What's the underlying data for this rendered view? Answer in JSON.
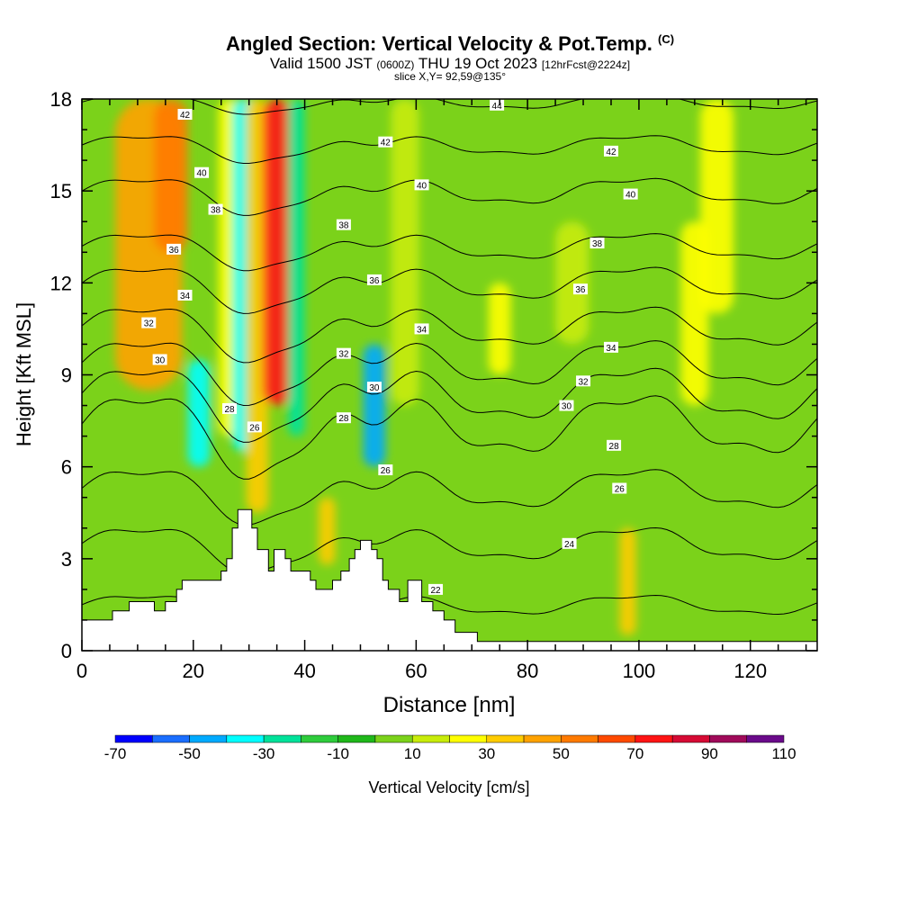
{
  "header": {
    "title_main": "Angled Section: Vertical Velocity & Pot.Temp.",
    "title_mark": "(C)",
    "valid_a": "Valid 1500 JST",
    "valid_b": "(0600Z)",
    "valid_c": "THU 19 Oct 2023",
    "valid_d": "[12hrFcst@2224z]",
    "slice": "slice X,Y= 92,59@135°"
  },
  "chart_data": {
    "type": "heatmap",
    "xlabel": "Distance [nm]",
    "ylabel": "Height [Kft MSL]",
    "xlim": [
      0,
      132
    ],
    "ylim": [
      0,
      18
    ],
    "x_ticks": [
      0,
      20,
      40,
      60,
      80,
      100,
      120
    ],
    "y_ticks": [
      0,
      3,
      6,
      9,
      12,
      15,
      18
    ],
    "colorbar": {
      "label": "Vertical Velocity [cm/s]",
      "tick_labels": [
        "-70",
        "-50",
        "-30",
        "-10",
        "10",
        "30",
        "50",
        "70",
        "90",
        "110"
      ],
      "levels": [
        -70,
        -60,
        -50,
        -40,
        -30,
        -20,
        -10,
        0,
        10,
        20,
        30,
        40,
        50,
        60,
        70,
        80,
        90,
        100,
        110
      ],
      "colors": [
        "#0000ff",
        "#1a6eff",
        "#00aaff",
        "#00ffff",
        "#00e29a",
        "#2ecc3c",
        "#1fb81a",
        "#7bd21a",
        "#c8ec0a",
        "#ffff00",
        "#ffcc00",
        "#ffa200",
        "#ff7a00",
        "#ff4a00",
        "#ff1414",
        "#d60a34",
        "#a00a5a",
        "#6a0a8a"
      ]
    },
    "terrain": [
      [
        0,
        1.0
      ],
      [
        5.5,
        1.0
      ],
      [
        5.5,
        1.3
      ],
      [
        8.5,
        1.3
      ],
      [
        8.5,
        1.6
      ],
      [
        13,
        1.6
      ],
      [
        13,
        1.3
      ],
      [
        15,
        1.3
      ],
      [
        15,
        1.6
      ],
      [
        17,
        1.6
      ],
      [
        17,
        2.0
      ],
      [
        18,
        2.0
      ],
      [
        18,
        2.3
      ],
      [
        25,
        2.3
      ],
      [
        25,
        2.6
      ],
      [
        26,
        2.6
      ],
      [
        26,
        3.0
      ],
      [
        27,
        3.0
      ],
      [
        27,
        4.0
      ],
      [
        28,
        4.0
      ],
      [
        28,
        4.6
      ],
      [
        30.5,
        4.6
      ],
      [
        30.5,
        4.0
      ],
      [
        31.5,
        4.0
      ],
      [
        31.5,
        3.3
      ],
      [
        33.5,
        3.3
      ],
      [
        33.5,
        2.6
      ],
      [
        34.5,
        2.6
      ],
      [
        34.5,
        3.3
      ],
      [
        36.5,
        3.3
      ],
      [
        36.5,
        3.0
      ],
      [
        37.5,
        3.0
      ],
      [
        37.5,
        2.6
      ],
      [
        41,
        2.6
      ],
      [
        41,
        2.3
      ],
      [
        42,
        2.3
      ],
      [
        42,
        2.0
      ],
      [
        45,
        2.0
      ],
      [
        45,
        2.3
      ],
      [
        46.5,
        2.3
      ],
      [
        46.5,
        2.6
      ],
      [
        48,
        2.6
      ],
      [
        48,
        3.0
      ],
      [
        49,
        3.0
      ],
      [
        49,
        3.3
      ],
      [
        50,
        3.3
      ],
      [
        50,
        3.6
      ],
      [
        52,
        3.6
      ],
      [
        52,
        3.3
      ],
      [
        53,
        3.3
      ],
      [
        53,
        3.0
      ],
      [
        54,
        3.0
      ],
      [
        54,
        2.3
      ],
      [
        55,
        2.3
      ],
      [
        55,
        2.0
      ],
      [
        57,
        2.0
      ],
      [
        57,
        1.6
      ],
      [
        58.5,
        1.6
      ],
      [
        58.5,
        2.3
      ],
      [
        61,
        2.3
      ],
      [
        61,
        1.6
      ],
      [
        63,
        1.6
      ],
      [
        63,
        1.3
      ],
      [
        65,
        1.3
      ],
      [
        65,
        1.0
      ],
      [
        67,
        1.0
      ],
      [
        67,
        0.6
      ],
      [
        71,
        0.6
      ],
      [
        71,
        0.3
      ],
      [
        132,
        0.3
      ],
      [
        132,
        0
      ]
    ],
    "isentropes": [
      {
        "theta": 22,
        "y": 1.5,
        "dip": 0.3
      },
      {
        "theta": 24,
        "y": 3.5,
        "dip": 0.5
      },
      {
        "theta": 26,
        "y": 5.3,
        "dip": 0.6
      },
      {
        "theta": 28,
        "y": 7.4,
        "dip": 0.9
      },
      {
        "theta": 30,
        "y": 8.4,
        "dip": 0.8
      },
      {
        "theta": 32,
        "y": 9.4,
        "dip": 0.7
      },
      {
        "theta": 34,
        "y": 10.6,
        "dip": 0.6
      },
      {
        "theta": 36,
        "y": 12.0,
        "dip": 0.5
      },
      {
        "theta": 38,
        "y": 13.2,
        "dip": 0.4
      },
      {
        "theta": 40,
        "y": 15.0,
        "dip": 0.4
      },
      {
        "theta": 42,
        "y": 16.5,
        "dip": 0.3
      },
      {
        "theta": 44,
        "y": 17.9,
        "dip": 0.2
      }
    ],
    "contour_labels": [
      {
        "text": "42",
        "x": 18.5,
        "y": 17.5
      },
      {
        "text": "44",
        "x": 74.5,
        "y": 17.8
      },
      {
        "text": "42",
        "x": 54.5,
        "y": 16.6
      },
      {
        "text": "42",
        "x": 95,
        "y": 16.3
      },
      {
        "text": "40",
        "x": 21.5,
        "y": 15.6
      },
      {
        "text": "40",
        "x": 61,
        "y": 15.2
      },
      {
        "text": "40",
        "x": 98.5,
        "y": 14.9
      },
      {
        "text": "38",
        "x": 24,
        "y": 14.4
      },
      {
        "text": "38",
        "x": 47,
        "y": 13.9
      },
      {
        "text": "38",
        "x": 92.5,
        "y": 13.3
      },
      {
        "text": "36",
        "x": 16.5,
        "y": 13.1
      },
      {
        "text": "36",
        "x": 52.5,
        "y": 12.1
      },
      {
        "text": "36",
        "x": 89.5,
        "y": 11.8
      },
      {
        "text": "34",
        "x": 18.5,
        "y": 11.6
      },
      {
        "text": "34",
        "x": 61,
        "y": 10.5
      },
      {
        "text": "34",
        "x": 95,
        "y": 9.9
      },
      {
        "text": "32",
        "x": 12,
        "y": 10.7
      },
      {
        "text": "32",
        "x": 47,
        "y": 9.7
      },
      {
        "text": "32",
        "x": 90,
        "y": 8.8
      },
      {
        "text": "30",
        "x": 14,
        "y": 9.5
      },
      {
        "text": "30",
        "x": 52.5,
        "y": 8.6
      },
      {
        "text": "30",
        "x": 87,
        "y": 8.0
      },
      {
        "text": "28",
        "x": 26.5,
        "y": 7.9
      },
      {
        "text": "28",
        "x": 47,
        "y": 7.6
      },
      {
        "text": "28",
        "x": 95.5,
        "y": 6.7
      },
      {
        "text": "26",
        "x": 31,
        "y": 7.3
      },
      {
        "text": "26",
        "x": 54.5,
        "y": 5.9
      },
      {
        "text": "26",
        "x": 96.5,
        "y": 5.3
      },
      {
        "text": "24",
        "x": 87.5,
        "y": 3.5
      },
      {
        "text": "22",
        "x": 63.5,
        "y": 2.0
      }
    ],
    "vertical_velocity_cores": [
      {
        "x": 12,
        "ybot": 8.5,
        "ytop": 18,
        "w": 6,
        "v": 40
      },
      {
        "x": 16,
        "ybot": 13,
        "ytop": 18,
        "w": 3,
        "v": 55
      },
      {
        "x": 21,
        "ybot": 6,
        "ytop": 9.5,
        "w": 2,
        "v": -35
      },
      {
        "x": 26.5,
        "ybot": 7,
        "ytop": 18,
        "w": 2,
        "v": 25
      },
      {
        "x": 29,
        "ybot": 6.5,
        "ytop": 18,
        "w": 2,
        "v": -35
      },
      {
        "x": 31.5,
        "ybot": 4.5,
        "ytop": 18,
        "w": 2,
        "v": 30
      },
      {
        "x": 35,
        "ybot": 8,
        "ytop": 18,
        "w": 2.5,
        "v": 75
      },
      {
        "x": 38.5,
        "ybot": 7,
        "ytop": 18,
        "w": 1.5,
        "v": -25
      },
      {
        "x": 44,
        "ybot": 2.8,
        "ytop": 5,
        "w": 1.5,
        "v": 30
      },
      {
        "x": 52.5,
        "ybot": 6,
        "ytop": 10,
        "w": 2,
        "v": -45
      },
      {
        "x": 58,
        "ybot": 8,
        "ytop": 18,
        "w": 2.5,
        "v": 15
      },
      {
        "x": 75,
        "ybot": 9,
        "ytop": 12,
        "w": 2,
        "v": 20
      },
      {
        "x": 88,
        "ybot": 10,
        "ytop": 14,
        "w": 3,
        "v": 15
      },
      {
        "x": 98,
        "ybot": 0.5,
        "ytop": 4,
        "w": 1.5,
        "v": 35
      },
      {
        "x": 110,
        "ybot": 8,
        "ytop": 14,
        "w": 2.5,
        "v": 20
      },
      {
        "x": 114,
        "ybot": 11,
        "ytop": 18,
        "w": 3,
        "v": 20
      }
    ]
  }
}
